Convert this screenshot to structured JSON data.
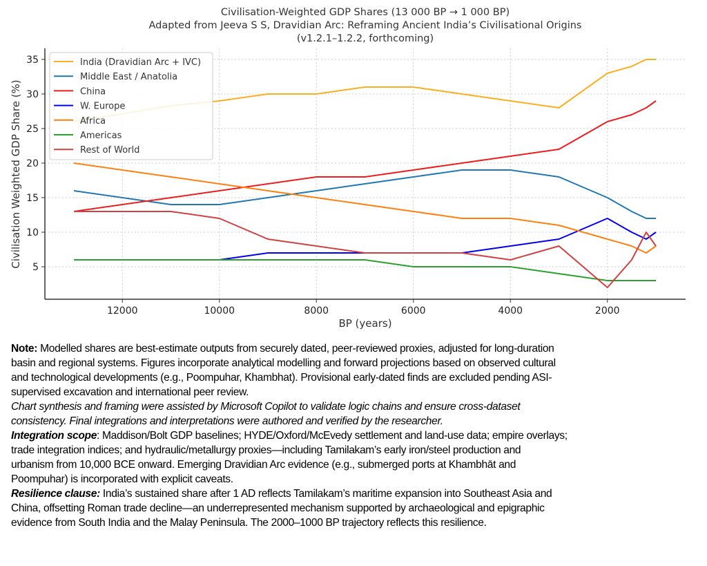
{
  "chart_data": {
    "type": "line",
    "title": "Civilisation-Weighted GDP Shares (13 000 BP → 1 000 BP)",
    "subtitle": "Adapted from Jeeva S S, Dravidian Arc: Reframing Ancient India’s Civilisational Origins",
    "subtitle2": "(v1.2.1–1.2.2, forthcoming)",
    "xlabel": "BP (years)",
    "ylabel": "Civilisation Weighted GDP Share (%)",
    "xlim": [
      13600,
      300
    ],
    "ylim": [
      0.7,
      36.8
    ],
    "xticks": [
      12000,
      10000,
      8000,
      6000,
      4000,
      2000
    ],
    "yticks": [
      5,
      10,
      15,
      20,
      25,
      30,
      35
    ],
    "grid": true,
    "legend_position": "top-left",
    "x": [
      13000,
      11000,
      10000,
      9000,
      8000,
      7000,
      6000,
      5000,
      4000,
      3000,
      2000,
      1500,
      1200,
      1000
    ],
    "series": [
      {
        "name": "India (Dravidian Arc + IVC)",
        "color": "#fcae1e",
        "values": [
          26,
          28.3,
          29,
          30,
          30,
          31,
          31,
          30,
          29,
          28,
          33,
          34,
          35,
          35
        ]
      },
      {
        "name": "Middle East / Anatolia",
        "color": "#1f77b4",
        "values": [
          16,
          14,
          14,
          15,
          16,
          17,
          18,
          19,
          19,
          18,
          15,
          13,
          12,
          12
        ]
      },
      {
        "name": "China",
        "color": "#ee1c1c",
        "values": [
          13,
          15,
          16,
          17,
          18,
          18,
          19,
          20,
          21,
          22,
          26,
          27,
          28,
          29
        ]
      },
      {
        "name": "W. Europe",
        "color": "#0000ee",
        "values": [
          6,
          6,
          6,
          7,
          7,
          7,
          7,
          7,
          8,
          9,
          12,
          10,
          9,
          10
        ]
      },
      {
        "name": "Africa",
        "color": "#ff7f0e",
        "values": [
          20,
          18,
          17,
          16,
          15,
          14,
          13,
          12,
          12,
          11,
          9,
          8,
          7,
          8
        ]
      },
      {
        "name": "Americas",
        "color": "#2ca02c",
        "values": [
          6,
          6,
          6,
          6,
          6,
          6,
          5,
          5,
          5,
          4,
          3,
          3,
          3,
          3
        ]
      },
      {
        "name": "Rest of World",
        "color": "#d0403f",
        "values": [
          13,
          13,
          12,
          9,
          8,
          7,
          7,
          7,
          6,
          8,
          2,
          6,
          10,
          8
        ]
      }
    ]
  },
  "notes": [
    {
      "label": "Note:",
      "italic": false,
      "lines": [
        "Modelled shares are best-estimate outputs from securely dated, peer-reviewed proxies, adjusted for long-duration",
        "basin and regional systems. Figures incorporate analytical modelling and forward projections based on observed cultural",
        "and technological developments (e.g., Poompuhar, Khambhat). Provisional early-dated finds are excluded pending ASI-",
        "supervised excavation and international peer review."
      ]
    },
    {
      "label": "",
      "italic": true,
      "lines": [
        "Chart synthesis and framing were assisted by Microsoft Copilot to validate logic chains and ensure cross-dataset",
        "consistency. Final integrations and interpretations were authored and verified by the researcher."
      ]
    },
    {
      "label": "Integration scope",
      "italic": false,
      "lines": [
        ": Maddison/Bolt GDP baselines; HYDE/Oxford/McEvedy settlement and land-use data; empire overlays;",
        "trade integration indices; and hydraulic/metallurgy proxies—including Tamilakam’s early iron/steel production and",
        "urbanism from 10,000 BCE onward. Emerging Dravidian Arc evidence (e.g., submerged ports at Khambhāt and",
        "Poompuhar) is incorporated with explicit caveats."
      ]
    },
    {
      "label": "Resilience clause:",
      "italic": false,
      "lines": [
        " India’s sustained share after 1 AD reflects Tamilakam’s maritime expansion into Southeast Asia and",
        "China, offsetting Roman trade decline—an underrepresented mechanism supported by archaeological and epigraphic",
        "evidence from South India and the Malay Peninsula. The 2000–1000 BP trajectory reflects this resilience."
      ]
    }
  ]
}
